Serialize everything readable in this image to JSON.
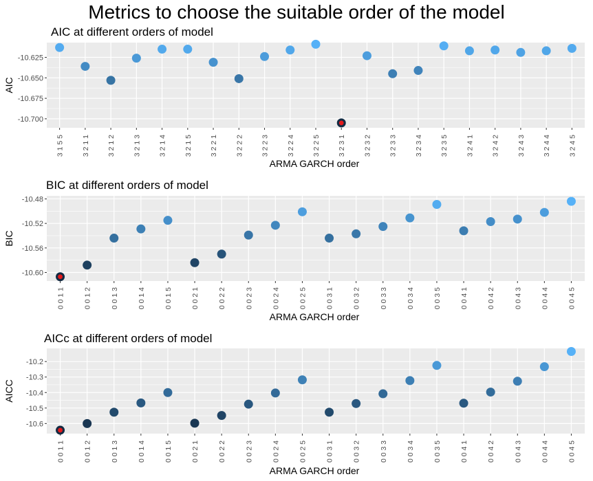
{
  "main_title": "Metrics to choose the suitable order of the model",
  "colors": {
    "panel_bg": "#EBEBEB",
    "grid": "#FFFFFF",
    "low": "#132B43",
    "high": "#56B1F7",
    "min_marker": "#E41A1C"
  },
  "chart_data": [
    {
      "type": "scatter",
      "title": "AIC at different orders of model",
      "xlabel": "ARMA GARCH order",
      "ylabel": "AIC",
      "categories": [
        "3 1 5 5",
        "3 2 1 1",
        "3 2 1 2",
        "3 2 1 3",
        "3 2 1 4",
        "3 2 1 5",
        "3 2 2 1",
        "3 2 2 2",
        "3 2 2 3",
        "3 2 2 4",
        "3 2 2 5",
        "3 2 3 1",
        "3 2 3 2",
        "3 2 3 3",
        "3 2 3 4",
        "3 2 3 5",
        "3 2 4 1",
        "3 2 4 2",
        "3 2 4 3",
        "3 2 4 4",
        "3 2 4 5"
      ],
      "values": [
        -10.613,
        -10.636,
        -10.653,
        -10.626,
        -10.615,
        -10.615,
        -10.631,
        -10.651,
        -10.624,
        -10.616,
        -10.609,
        -10.705,
        -10.623,
        -10.645,
        -10.641,
        -10.611,
        -10.617,
        -10.616,
        -10.619,
        -10.617,
        -10.614
      ],
      "yticks": [
        "-10.625",
        "-10.650",
        "-10.675",
        "-10.700"
      ],
      "ylim": [
        -10.711,
        -10.607
      ],
      "highlight_min": true
    },
    {
      "type": "scatter",
      "title": "BIC at different orders of model",
      "xlabel": "ARMA GARCH order",
      "ylabel": "BIC",
      "categories": [
        "0 0 1 1",
        "0 0 1 2",
        "0 0 1 3",
        "0 0 1 4",
        "0 0 1 5",
        "0 0 2 1",
        "0 0 2 2",
        "0 0 2 3",
        "0 0 2 4",
        "0 0 2 5",
        "0 0 3 1",
        "0 0 3 2",
        "0 0 3 3",
        "0 0 3 4",
        "0 0 3 5",
        "0 0 4 1",
        "0 0 4 2",
        "0 0 4 3",
        "0 0 4 4",
        "0 0 4 5"
      ],
      "values": [
        -10.607,
        -10.588,
        -10.544,
        -10.529,
        -10.515,
        -10.584,
        -10.57,
        -10.539,
        -10.523,
        -10.501,
        -10.544,
        -10.537,
        -10.525,
        -10.511,
        -10.489,
        -10.532,
        -10.517,
        -10.513,
        -10.502,
        -10.484
      ],
      "yticks": [
        "-10.48",
        "-10.52",
        "-10.56",
        "-10.60"
      ],
      "ylim": [
        -10.614,
        -10.475
      ],
      "highlight_min": true
    },
    {
      "type": "scatter",
      "title": "AICc at different orders of model",
      "xlabel": "ARMA GARCH order",
      "ylabel": "AICC",
      "categories": [
        "0 0 1 1",
        "0 0 1 2",
        "0 0 1 3",
        "0 0 1 4",
        "0 0 1 5",
        "0 0 2 1",
        "0 0 2 2",
        "0 0 2 3",
        "0 0 2 4",
        "0 0 2 5",
        "0 0 3 1",
        "0 0 3 2",
        "0 0 3 3",
        "0 0 3 4",
        "0 0 3 5",
        "0 0 4 1",
        "0 0 4 2",
        "0 0 4 3",
        "0 0 4 4",
        "0 0 4 5"
      ],
      "values": [
        -10.643,
        -10.6,
        -10.527,
        -10.467,
        -10.4,
        -10.598,
        -10.548,
        -10.475,
        -10.403,
        -10.318,
        -10.527,
        -10.471,
        -10.408,
        -10.323,
        -10.225,
        -10.469,
        -10.397,
        -10.327,
        -10.233,
        -10.135
      ],
      "yticks": [
        "-10.2",
        "-10.3",
        "-10.4",
        "-10.5",
        "-10.6"
      ],
      "ylim": [
        -10.665,
        -10.115
      ],
      "highlight_min": true
    }
  ]
}
